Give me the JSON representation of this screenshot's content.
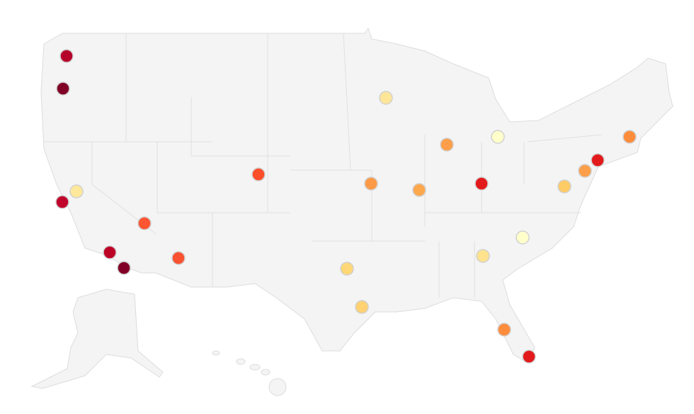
{
  "map": {
    "points": [
      {
        "color": "#b5002a"
      },
      {
        "color": "#800026"
      },
      {
        "color": "#fee89a"
      },
      {
        "color": "#c0032b"
      },
      {
        "color": "#fb5532"
      },
      {
        "color": "#bd0026"
      },
      {
        "color": "#800026"
      },
      {
        "color": "#f85230"
      },
      {
        "color": "#fc4e2a"
      },
      {
        "color": "#fee698"
      },
      {
        "color": "#fd9a47"
      },
      {
        "color": "#fea84e"
      },
      {
        "color": "#fd9f4a"
      },
      {
        "color": "#ffffcc"
      },
      {
        "color": "#e31a1c"
      },
      {
        "color": "#fed777"
      },
      {
        "color": "#fed173"
      },
      {
        "color": "#fee28e"
      },
      {
        "color": "#ffffcc"
      },
      {
        "color": "#fecc66"
      },
      {
        "color": "#fd9f4a"
      },
      {
        "color": "#e31a1c"
      },
      {
        "color": "#fd8d3c"
      },
      {
        "color": "#fd8d3c"
      },
      {
        "color": "#e31a1c"
      }
    ]
  }
}
